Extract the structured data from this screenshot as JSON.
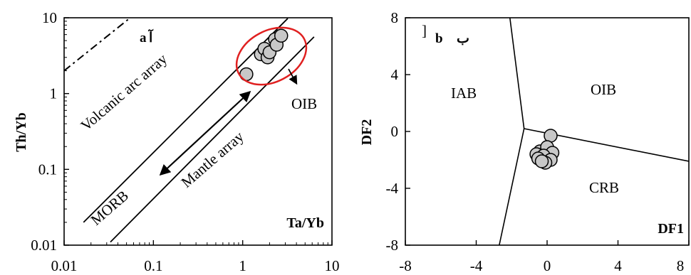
{
  "chart_data": [
    {
      "panel": "a",
      "type": "scatter",
      "xscale": "log",
      "yscale": "log",
      "xlabel": "Ta/Yb",
      "ylabel": "Th/Yb",
      "xlim": [
        0.01,
        10
      ],
      "ylim": [
        0.01,
        10
      ],
      "xticks": [
        "0.01",
        "0.1",
        "1",
        "10"
      ],
      "yticks": [
        "0.01",
        "0.1",
        "1",
        "10"
      ],
      "panel_tag": "a",
      "panel_tag_extra": "آ",
      "points": [
        {
          "x": 1.1,
          "y": 1.8
        },
        {
          "x": 1.6,
          "y": 3.3
        },
        {
          "x": 1.75,
          "y": 3.9
        },
        {
          "x": 1.9,
          "y": 3.0
        },
        {
          "x": 2.0,
          "y": 3.5
        },
        {
          "x": 2.3,
          "y": 5.2
        },
        {
          "x": 2.4,
          "y": 4.4
        },
        {
          "x": 2.7,
          "y": 5.8
        }
      ],
      "lines": [
        {
          "name": "mantle-array-upper",
          "x": [
            0.0165,
            3.2
          ],
          "y": [
            0.02,
            9.8
          ]
        },
        {
          "name": "mantle-array-lower",
          "x": [
            0.033,
            6.3
          ],
          "y": [
            0.011,
            5.6
          ]
        }
      ],
      "dashed_line": {
        "x": [
          0.01,
          0.055
        ],
        "y": [
          2.0,
          10
        ]
      },
      "region_labels": [
        "Volcanic arc array",
        "MORB",
        "Mantle array",
        "OIB"
      ],
      "ellipse_color": "#e02020"
    },
    {
      "panel": "b",
      "type": "scatter",
      "xlabel": "DF1",
      "ylabel": "DF2",
      "xlim": [
        -8,
        8
      ],
      "ylim": [
        -8,
        8
      ],
      "xticks": [
        "-8",
        "-4",
        "0",
        "4",
        "8"
      ],
      "yticks": [
        "-8",
        "-4",
        "0",
        "4",
        "8"
      ],
      "panel_tag": "b",
      "panel_tag_extra": "ب",
      "corner_mark": "]",
      "points": [
        {
          "x": 0.2,
          "y": -0.3
        },
        {
          "x": -0.4,
          "y": -1.4
        },
        {
          "x": 0.0,
          "y": -1.1
        },
        {
          "x": -0.6,
          "y": -1.6
        },
        {
          "x": 0.3,
          "y": -1.5
        },
        {
          "x": -0.2,
          "y": -1.7
        },
        {
          "x": -0.5,
          "y": -1.9
        },
        {
          "x": 0.2,
          "y": -2.0
        },
        {
          "x": -0.1,
          "y": -2.2
        },
        {
          "x": -0.3,
          "y": -2.1
        }
      ],
      "boundaries": [
        {
          "x": [
            -2.1,
            -1.3
          ],
          "y": [
            8,
            0.2
          ]
        },
        {
          "x": [
            -1.3,
            8
          ],
          "y": [
            0.2,
            -2.1
          ]
        },
        {
          "x": [
            -1.3,
            -2.7
          ],
          "y": [
            0.2,
            -8
          ]
        }
      ],
      "region_labels": [
        "IAB",
        "OIB",
        "CRB"
      ]
    }
  ]
}
